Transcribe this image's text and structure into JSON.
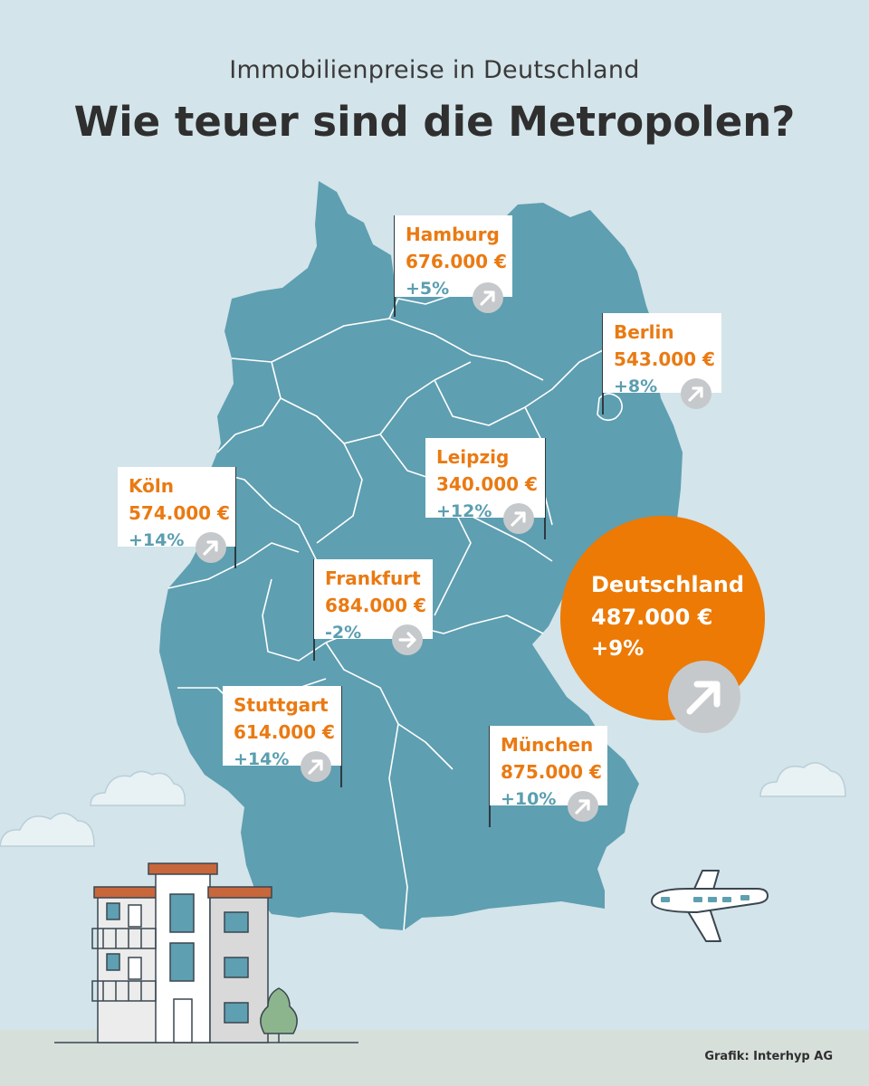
{
  "header": {
    "subtitle": "Immobilienpreise in Deutschland",
    "title": "Wie teuer sind die Metropolen?"
  },
  "colors": {
    "background": "#d3e4ea",
    "map": "#5e9fb1",
    "accent_orange": "#ec7a05",
    "change_blue": "#5b9eb0",
    "badge_gray": "#c6c9cb"
  },
  "cities": [
    {
      "name": "Hamburg",
      "price": "676.000 €",
      "change": "+5%",
      "trend": "up"
    },
    {
      "name": "Berlin",
      "price": "543.000 €",
      "change": "+8%",
      "trend": "up"
    },
    {
      "name": "Leipzig",
      "price": "340.000 €",
      "change": "+12%",
      "trend": "up"
    },
    {
      "name": "Köln",
      "price": "574.000 €",
      "change": "+14%",
      "trend": "up"
    },
    {
      "name": "Frankfurt",
      "price": "684.000 €",
      "change": "-2%",
      "trend": "flat"
    },
    {
      "name": "Stuttgart",
      "price": "614.000 €",
      "change": "+14%",
      "trend": "up"
    },
    {
      "name": "München",
      "price": "875.000 €",
      "change": "+10%",
      "trend": "up"
    }
  ],
  "national": {
    "name": "Deutschland",
    "price": "487.000 €",
    "change": "+9%",
    "trend": "up"
  },
  "icons": [
    "arrow-up-right-icon",
    "arrow-right-icon",
    "airplane-icon",
    "house-icon",
    "cloud-icon",
    "tree-icon"
  ],
  "credit": "Grafik: Interhyp AG"
}
